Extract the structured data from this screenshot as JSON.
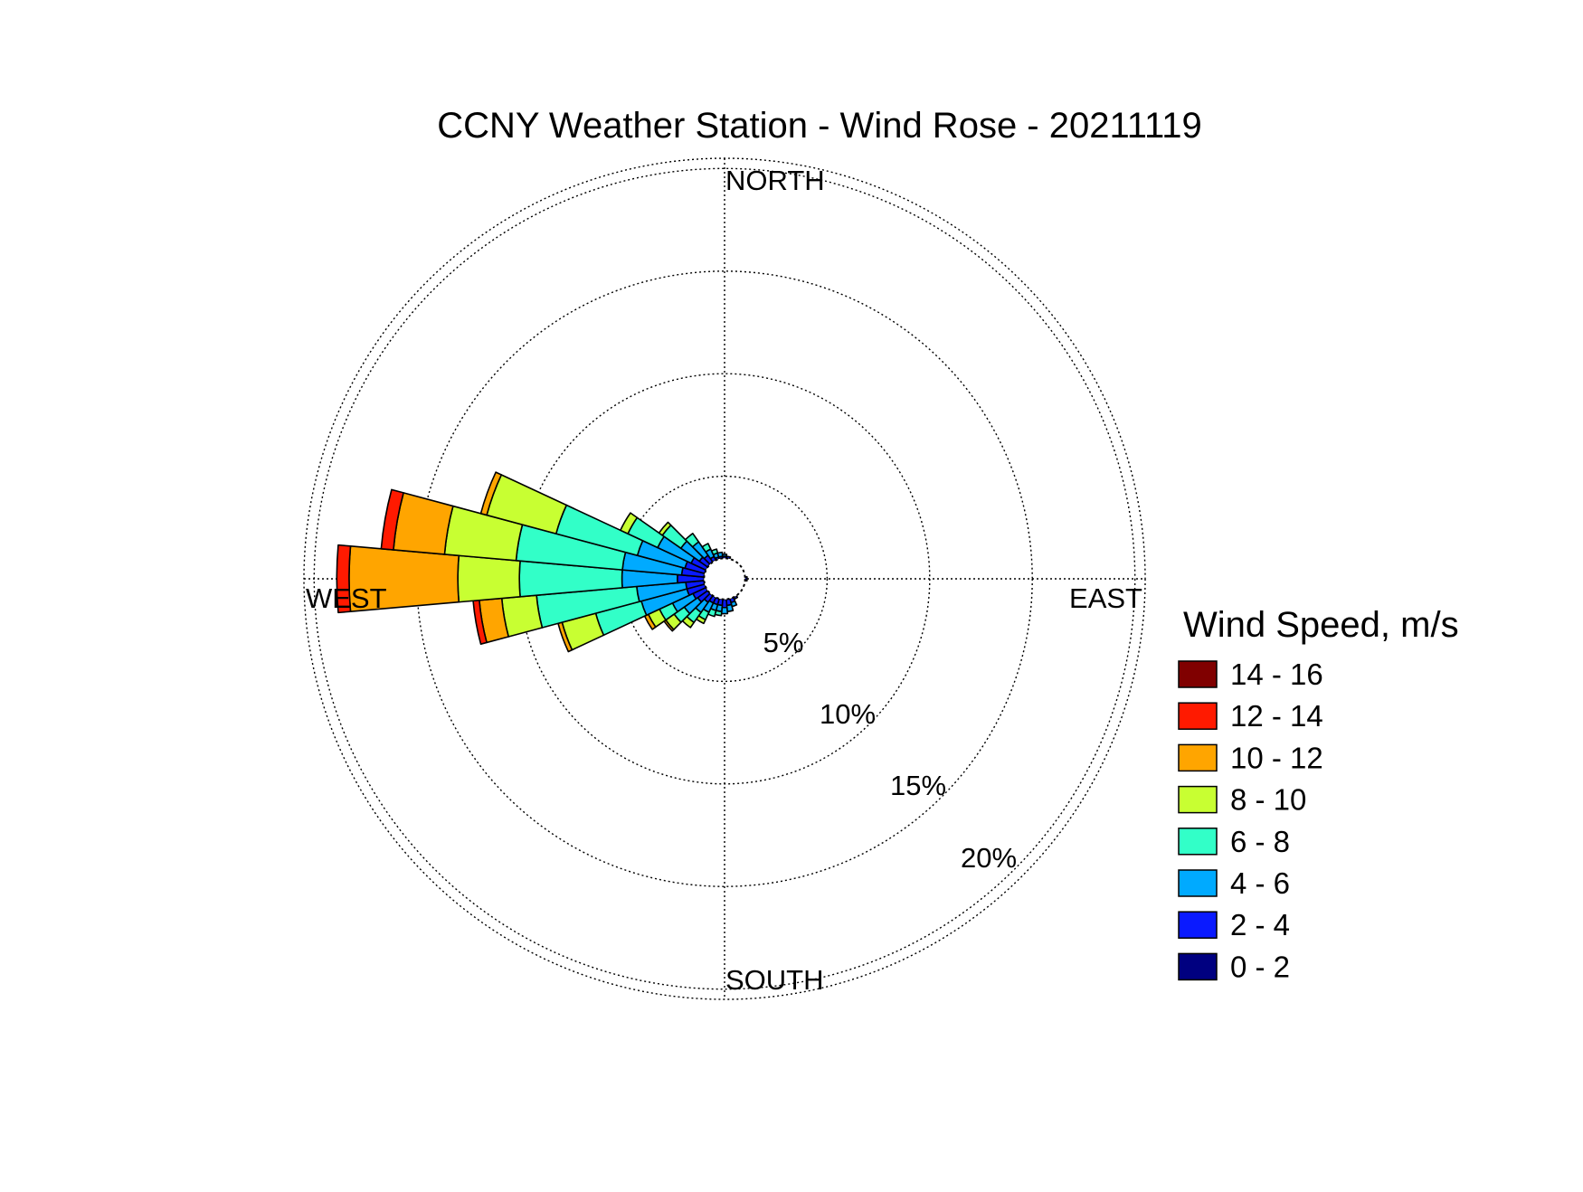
{
  "chart_data": {
    "type": "wind-rose",
    "title": "CCNY Weather Station - Wind Rose - 20211119",
    "direction_labels": {
      "north": "NORTH",
      "south": "SOUTH",
      "east": "EAST",
      "west": "WEST"
    },
    "radial_ticks": [
      5,
      10,
      15,
      20
    ],
    "radial_tick_labels": [
      "5%",
      "10%",
      "15%",
      "20%"
    ],
    "radial_max": 20.5,
    "grid": "dotted",
    "legend": {
      "title": "Wind Speed, m/s",
      "placement": "right",
      "bins": [
        {
          "label": "14 - 16",
          "color": "#800000"
        },
        {
          "label": "12 - 14",
          "color": "#ff1a00"
        },
        {
          "label": "10 - 12",
          "color": "#ffa500"
        },
        {
          "label": "8 - 10",
          "color": "#c8ff32"
        },
        {
          "label": "6 - 8",
          "color": "#32ffc8"
        },
        {
          "label": "4 - 6",
          "color": "#00aaff"
        },
        {
          "label": "2 - 4",
          "color": "#0a1aff"
        },
        {
          "label": "0 - 2",
          "color": "#000080"
        }
      ]
    },
    "direction_bin_width_deg": 10,
    "bin_order_inner_to_outer": [
      "0 - 2",
      "2 - 4",
      "4 - 6",
      "6 - 8",
      "8 - 10",
      "10 - 12",
      "12 - 14",
      "14 - 16"
    ],
    "sectors": [
      {
        "direction_deg": 180,
        "cumulative": [
          1.0,
          1.4,
          1.7
        ]
      },
      {
        "direction_deg": 190,
        "cumulative": [
          1.0,
          1.3,
          1.6,
          1.8
        ]
      },
      {
        "direction_deg": 200,
        "cumulative": [
          1.0,
          1.3,
          1.6,
          1.9
        ]
      },
      {
        "direction_deg": 210,
        "cumulative": [
          1.0,
          1.3,
          1.8,
          2.2,
          2.4
        ]
      },
      {
        "direction_deg": 220,
        "cumulative": [
          1.0,
          1.4,
          2.0,
          2.6,
          2.9
        ]
      },
      {
        "direction_deg": 230,
        "cumulative": [
          1.0,
          1.6,
          2.4,
          3.0,
          3.5,
          3.6
        ]
      },
      {
        "direction_deg": 240,
        "cumulative": [
          1.0,
          1.7,
          2.8,
          3.5,
          4.1,
          4.3
        ]
      },
      {
        "direction_deg": 250,
        "cumulative": [
          1.0,
          1.9,
          4.2,
          6.5,
          8.2,
          8.4
        ]
      },
      {
        "direction_deg": 260,
        "cumulative": [
          1.0,
          1.9,
          4.3,
          9.2,
          10.9,
          12.0,
          12.3
        ]
      },
      {
        "direction_deg": 270,
        "cumulative": [
          1.0,
          2.3,
          5.0,
          10.0,
          13.0,
          18.3,
          18.9
        ]
      },
      {
        "direction_deg": 280,
        "cumulative": [
          1.0,
          2.1,
          5.0,
          10.2,
          13.7,
          16.2,
          16.8
        ]
      },
      {
        "direction_deg": 290,
        "cumulative": [
          1.0,
          2.0,
          4.4,
          8.5,
          12.0,
          12.3
        ]
      },
      {
        "direction_deg": 300,
        "cumulative": [
          1.0,
          1.8,
          3.6,
          5.2,
          5.6
        ]
      },
      {
        "direction_deg": 310,
        "cumulative": [
          1.0,
          1.5,
          2.6,
          3.7,
          3.9
        ]
      },
      {
        "direction_deg": 320,
        "cumulative": [
          1.0,
          1.4,
          2.2,
          2.7
        ]
      },
      {
        "direction_deg": 330,
        "cumulative": [
          1.0,
          1.2,
          1.6,
          1.9
        ]
      },
      {
        "direction_deg": 340,
        "cumulative": [
          1.0,
          1.1,
          1.3,
          1.5
        ]
      },
      {
        "direction_deg": 350,
        "cumulative": [
          1.0,
          1.1,
          1.3
        ]
      },
      {
        "direction_deg": 0,
        "cumulative": [
          1.0,
          1.1,
          1.2
        ]
      },
      {
        "direction_deg": 10,
        "cumulative": [
          1.0,
          1.1
        ]
      },
      {
        "direction_deg": 90,
        "cumulative": [
          1.0,
          1.1
        ]
      },
      {
        "direction_deg": 150,
        "cumulative": [
          1.0,
          1.1
        ]
      },
      {
        "direction_deg": 160,
        "cumulative": [
          1.0,
          1.2,
          1.4
        ]
      },
      {
        "direction_deg": 170,
        "cumulative": [
          1.0,
          1.3,
          1.6
        ]
      }
    ]
  }
}
